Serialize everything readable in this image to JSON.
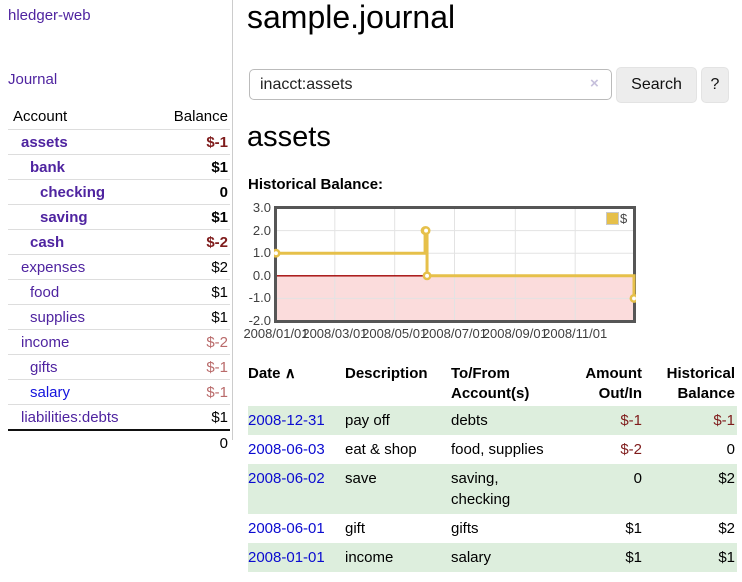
{
  "colors": {
    "link_purple": "#4f24a0",
    "link_blue": "#1414dd",
    "date_link_blue": "#0b0bd0",
    "negative_dark_red": "#7f1c1c",
    "negative_muted_rose": "#b96a6a",
    "row_stripe_green": "#ddeedd",
    "chart_line_yellow": "#e6c04a",
    "chart_negative_region_pink": "#fbdcdc",
    "chart_zero_line_red": "#a00000",
    "button_gray": "#ededed"
  },
  "sidebar": {
    "brand": "hledger-web",
    "journal_label": "Journal",
    "account_header": "Account",
    "balance_header": "Balance",
    "accounts": [
      {
        "name": "assets",
        "balance": "$-1"
      },
      {
        "name": "bank",
        "balance": "$1"
      },
      {
        "name": "checking",
        "balance": "0"
      },
      {
        "name": "saving",
        "balance": "$1"
      },
      {
        "name": "cash",
        "balance": "$-2"
      },
      {
        "name": "expenses",
        "balance": "$2"
      },
      {
        "name": "food",
        "balance": "$1"
      },
      {
        "name": "supplies",
        "balance": "$1"
      },
      {
        "name": "income",
        "balance": "$-2"
      },
      {
        "name": "gifts",
        "balance": "$-1"
      },
      {
        "name": "salary",
        "balance": "$-1"
      },
      {
        "name": "liabilities:debts",
        "balance": "$1"
      }
    ],
    "total": "0"
  },
  "header": {
    "title": "sample.journal"
  },
  "search": {
    "value": "inacct:assets",
    "clear_icon": "×",
    "search_button": "Search",
    "help_button": "?"
  },
  "account_view": {
    "title": "assets",
    "section_label": "Historical Balance:"
  },
  "chart_data": {
    "type": "line",
    "step": true,
    "title": "Historical Balance:",
    "series": [
      {
        "name": "$",
        "points": [
          [
            "2008-01-01",
            1
          ],
          [
            "2008-06-01",
            2
          ],
          [
            "2008-06-02",
            2
          ],
          [
            "2008-06-03",
            0
          ],
          [
            "2008-12-31",
            -1
          ]
        ]
      }
    ],
    "ylim": [
      -2,
      3
    ],
    "xrange": [
      "2008-01-01",
      "2008-12-31"
    ],
    "yticks": [
      "3.0",
      "2.0",
      "1.0",
      "0.0",
      "-1.0",
      "-2.0"
    ],
    "xticks": [
      "2008/01/01",
      "2008/03/01",
      "2008/05/01",
      "2008/07/01",
      "2008/09/01",
      "2008/11/01"
    ],
    "legend": {
      "label": "$",
      "position": "top-right"
    },
    "grid": true,
    "negative_region_shaded_below": 0
  },
  "register": {
    "headers": {
      "date": "Date",
      "sort_icon": "∧",
      "description": "Description",
      "tofrom": "To/From Account(s)",
      "amount": "Amount Out/In",
      "balance": "Historical Balance"
    },
    "rows": [
      {
        "date": "2008-12-31",
        "description": "pay off",
        "accounts": "debts",
        "amount": "$-1",
        "balance": "$-1"
      },
      {
        "date": "2008-06-03",
        "description": "eat & shop",
        "accounts": "food, supplies",
        "amount": "$-2",
        "balance": "0"
      },
      {
        "date": "2008-06-02",
        "description": "save",
        "accounts": "saving, checking",
        "amount": "0",
        "balance": "$2"
      },
      {
        "date": "2008-06-01",
        "description": "gift",
        "accounts": "gifts",
        "amount": "$1",
        "balance": "$2"
      },
      {
        "date": "2008-01-01",
        "description": "income",
        "accounts": "salary",
        "amount": "$1",
        "balance": "$1"
      }
    ]
  }
}
